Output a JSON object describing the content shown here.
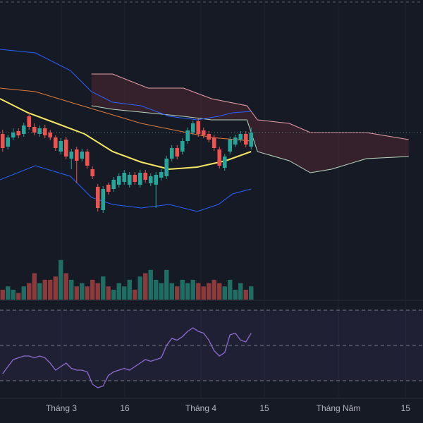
{
  "chart_data": [
    {
      "type": "candlestick",
      "xlim": [
        0,
        80
      ],
      "ylim": [
        19,
        62
      ],
      "up_color": "#26a69a",
      "down_color": "#ef5350",
      "open": [
        43.0,
        41.2,
        42.5,
        43.4,
        43.0,
        45.5,
        44.0,
        43.0,
        43.8,
        43.2,
        42.5,
        40.5,
        42.2,
        39.5,
        40.8,
        39.5,
        40.5,
        38.0,
        35.5,
        32.2,
        35.8,
        35.2,
        35.8,
        36.2,
        35.8,
        37.2,
        35.8,
        37.5,
        36.0,
        35.8,
        36.8,
        37.0,
        39.5,
        41.0,
        40.5,
        42.0,
        43.2,
        44.8,
        43.5,
        43.0,
        42.5,
        40.8,
        38.2,
        40.5,
        41.5,
        42.2,
        43.0,
        41.2
      ],
      "high": [
        43.6,
        42.9,
        43.8,
        43.8,
        44.6,
        46.0,
        44.5,
        44.2,
        44.3,
        43.6,
        42.8,
        42.4,
        42.6,
        40.9,
        41.2,
        40.9,
        40.9,
        38.4,
        35.9,
        35.6,
        36.1,
        36.9,
        37.4,
        37.9,
        37.6,
        37.6,
        37.9,
        37.9,
        37.4,
        37.6,
        38.0,
        39.9,
        41.4,
        41.4,
        42.4,
        43.9,
        44.9,
        45.2,
        43.9,
        43.4,
        42.9,
        41.2,
        40.2,
        42.6,
        42.9,
        43.4,
        43.4,
        43.9
      ],
      "low": [
        40.5,
        40.8,
        42.1,
        42.4,
        42.6,
        43.6,
        42.8,
        42.6,
        42.4,
        42.1,
        40.6,
        40.1,
        39.4,
        38.0,
        36.0,
        39.1,
        38.1,
        36.6,
        32.0,
        31.8,
        34.4,
        34.8,
        35.4,
        35.8,
        35.4,
        35.8,
        35.4,
        36.1,
        35.6,
        32.5,
        36.4,
        36.6,
        39.1,
        39.4,
        40.1,
        41.6,
        42.8,
        42.6,
        42.4,
        41.8,
        40.6,
        38.1,
        37.8,
        40.1,
        41.1,
        41.8,
        41.1,
        40.8
      ],
      "close": [
        41.0,
        42.5,
        43.2,
        42.8,
        44.2,
        44.0,
        43.2,
        43.8,
        42.8,
        42.5,
        41.0,
        42.0,
        39.8,
        40.5,
        39.2,
        40.5,
        38.5,
        37.0,
        32.5,
        35.2,
        34.8,
        36.5,
        37.0,
        37.5,
        37.2,
        36.2,
        37.5,
        36.5,
        37.0,
        37.2,
        37.6,
        39.5,
        41.0,
        39.8,
        42.0,
        43.5,
        44.5,
        43.0,
        42.8,
        42.2,
        41.0,
        38.5,
        39.8,
        42.2,
        42.5,
        43.0,
        41.5,
        43.2
      ],
      "series": [
        {
          "color": "#2962ff",
          "x": [
            0,
            6.7,
            13.3,
            17.3,
            21.3,
            26.7,
            32,
            37.3,
            41.3,
            44,
            47.5
          ],
          "values": [
            55.0,
            54.5,
            52.0,
            49.0,
            47.5,
            47.0,
            45.5,
            45.0,
            45.5,
            46.0,
            46.2
          ]
        },
        {
          "color": "#2962ff",
          "x": [
            0,
            6.7,
            13.3,
            17.3,
            21.3,
            26.7,
            32,
            37.3,
            41.3,
            44,
            47.5
          ],
          "values": [
            36.5,
            38.5,
            37.0,
            34.0,
            33.0,
            32.5,
            33.0,
            32.0,
            33.0,
            34.5,
            35.2
          ]
        },
        {
          "color": "#e07b39",
          "x": [
            0,
            6.7,
            13.3,
            20,
            26.7,
            33.3,
            40,
            47.5
          ],
          "values": [
            49.5,
            49.0,
            47.5,
            46.0,
            44.5,
            43.5,
            42.5,
            42.0
          ]
        },
        {
          "color": "#f5e663",
          "x": [
            0,
            5.3,
            10.7,
            16,
            21.3,
            26.7,
            32,
            37.3,
            42.7,
            47.5
          ],
          "values": [
            48.0,
            46.0,
            44.5,
            43.0,
            40.5,
            39.0,
            38.0,
            38.3,
            39.2,
            40.5
          ]
        }
      ],
      "cloud": {
        "x": [
          17.3,
          21.3,
          28,
          34.7,
          40,
          46.7,
          48.7,
          54.7,
          58.7,
          62.7,
          69.3,
          77.3
        ],
        "span_b": [
          51.5,
          51.5,
          49.5,
          49.5,
          48.0,
          47.0,
          45.0,
          44.5,
          43.2,
          43.2,
          43.2,
          42.2
        ],
        "span_a": [
          47.0,
          46.5,
          46.0,
          45.5,
          45.0,
          45.0,
          40.5,
          39.2,
          37.5,
          38.0,
          39.5,
          39.8
        ],
        "b_color": "#e8a0a8",
        "a_color": "#b9d8c0",
        "fill": "#5a2a35"
      }
    },
    {
      "type": "bar",
      "xlim": [
        0,
        80
      ],
      "ylim": [
        0,
        80
      ],
      "up_color": "#1f6e64",
      "down_color": "#8c3a3c",
      "values": [
        15,
        20,
        15,
        10,
        20,
        25,
        40,
        25,
        30,
        30,
        35,
        60,
        40,
        30,
        20,
        25,
        20,
        30,
        25,
        35,
        20,
        15,
        25,
        20,
        30,
        15,
        35,
        40,
        45,
        30,
        25,
        45,
        25,
        20,
        30,
        25,
        30,
        25,
        20,
        25,
        30,
        25,
        20,
        30,
        15,
        25,
        15,
        20
      ]
    },
    {
      "type": "line",
      "xlim": [
        0,
        80
      ],
      "ylim": [
        20,
        74
      ],
      "color": "#8e6bd1",
      "levels": [
        70,
        50,
        30
      ],
      "values": [
        34,
        38,
        42,
        43,
        44,
        44,
        43,
        44,
        43,
        40,
        36,
        38,
        40,
        37,
        36,
        36,
        35,
        28,
        26,
        27,
        33,
        35,
        36,
        37,
        36,
        38,
        40,
        42,
        41,
        42,
        43,
        50,
        54,
        53,
        55,
        58,
        60,
        58,
        57,
        53,
        47,
        44,
        46,
        56,
        57,
        53,
        52,
        57
      ],
      "xticks": [
        {
          "value": 11.6,
          "label": "Tháng 3"
        },
        {
          "value": 23.6,
          "label": "16"
        },
        {
          "value": 38,
          "label": "Tháng 4"
        },
        {
          "value": 50,
          "label": "15"
        },
        {
          "value": 64,
          "label": "Tháng Năm"
        },
        {
          "value": 76.7,
          "label": "15"
        }
      ]
    }
  ]
}
